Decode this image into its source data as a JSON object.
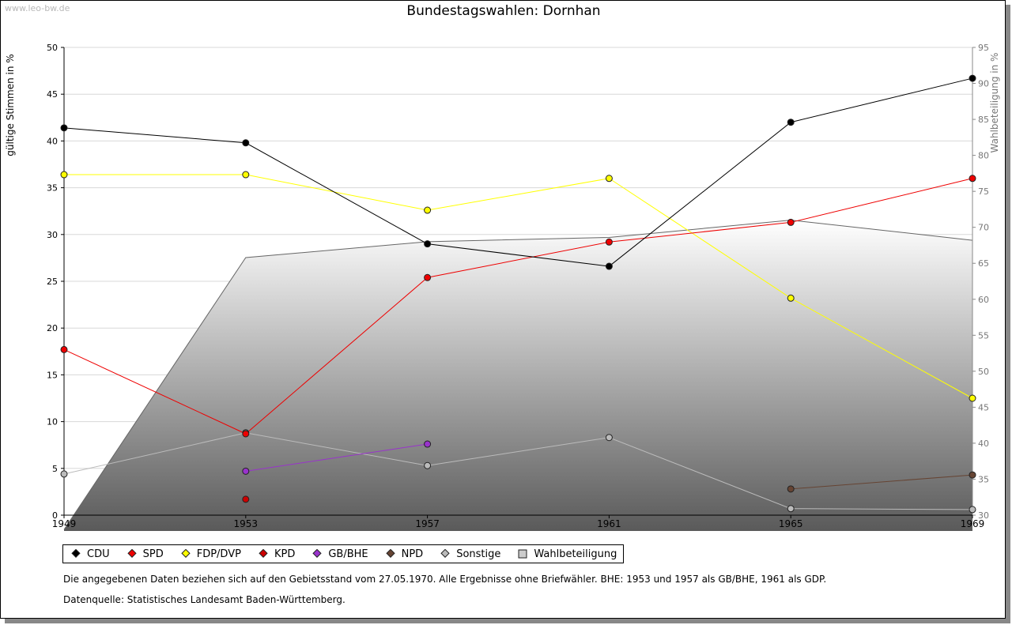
{
  "watermark": "www.leo-bw.de",
  "chart_data": {
    "type": "line",
    "title": "Bundestagswahlen: Dornhan",
    "ylabel": "gültige Stimmen in %",
    "y2label": "Wahlbeteiligung in %",
    "x": [
      "1949",
      "1953",
      "1957",
      "1961",
      "1965",
      "1969"
    ],
    "ylim": [
      0,
      50
    ],
    "yticks": [
      "0",
      "5",
      "10",
      "15",
      "20",
      "25",
      "30",
      "35",
      "40",
      "45",
      "50"
    ],
    "y2lim": [
      30,
      95
    ],
    "y2ticks": [
      "30",
      "35",
      "40",
      "45",
      "50",
      "55",
      "60",
      "65",
      "70",
      "75",
      "80",
      "85",
      "90",
      "95"
    ],
    "grid": true,
    "legend_position": "bottom",
    "series": [
      {
        "name": "CDU",
        "color": "#000000",
        "values": [
          41.4,
          39.8,
          29.0,
          26.6,
          42.0,
          46.7
        ]
      },
      {
        "name": "SPD",
        "color": "#ee0000",
        "values": [
          17.7,
          8.7,
          25.4,
          29.2,
          31.3,
          36.0
        ]
      },
      {
        "name": "FDP/DVP",
        "color": "#ffff00",
        "values": [
          36.4,
          36.4,
          32.6,
          36.0,
          23.2,
          12.5
        ]
      },
      {
        "name": "KPD",
        "color": "#cc0000",
        "values": [
          null,
          1.7,
          null,
          null,
          null,
          null
        ]
      },
      {
        "name": "GB/BHE",
        "color": "#9933cc",
        "values": [
          null,
          4.7,
          7.6,
          null,
          null,
          null
        ]
      },
      {
        "name": "NPD",
        "color": "#664433",
        "values": [
          null,
          null,
          null,
          null,
          2.8,
          4.3
        ]
      },
      {
        "name": "Sonstige",
        "color": "#bbbbbb",
        "values": [
          4.4,
          8.8,
          5.3,
          8.3,
          0.7,
          0.6
        ]
      },
      {
        "name": "Wahlbeteiligung",
        "color": "#cccccc",
        "axis": "right",
        "type": "area",
        "values": [
          28.0,
          65.8,
          68.0,
          68.6,
          71.0,
          68.2
        ]
      }
    ]
  },
  "notes": [
    "Die angegebenen Daten beziehen sich auf den Gebietsstand vom 27.05.1970. Alle Ergebnisse ohne Briefwähler. BHE: 1953 und 1957 als GB/BHE, 1961 als GDP.",
    "Datenquelle: Statistisches Landesamt Baden-Württemberg."
  ]
}
